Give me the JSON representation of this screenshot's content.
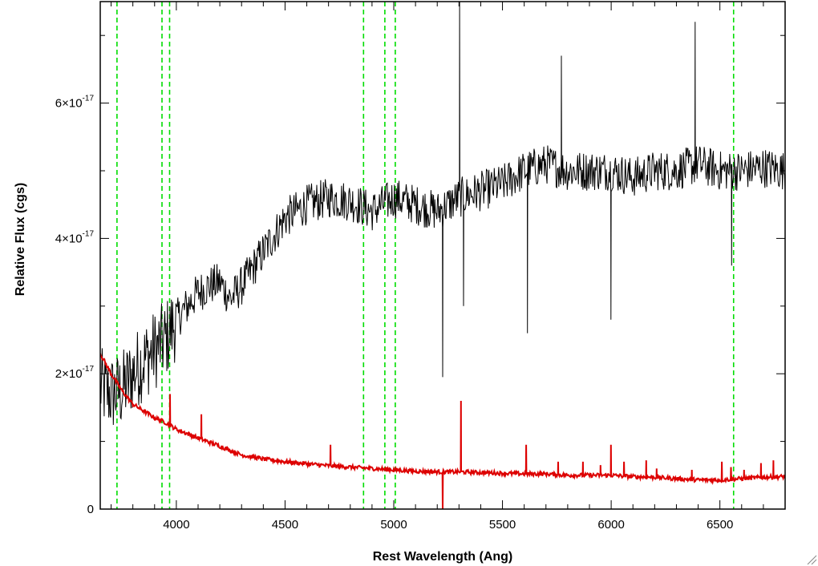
{
  "chart_data": {
    "type": "line",
    "title": "",
    "xlabel": "Rest Wavelength (Ang)",
    "ylabel": "Relative Flux (cgs)",
    "xlim": [
      3650,
      6800
    ],
    "ylim": [
      0,
      7.5e-17
    ],
    "x_ticks": [
      {
        "value": 4000,
        "label": "4000"
      },
      {
        "value": 4500,
        "label": "4500"
      },
      {
        "value": 5000,
        "label": "5000"
      },
      {
        "value": 5500,
        "label": "5500"
      },
      {
        "value": 6000,
        "label": "6000"
      },
      {
        "value": 6500,
        "label": "6500"
      }
    ],
    "y_ticks": [
      {
        "value": 0,
        "mantissa": "0",
        "exponent": ""
      },
      {
        "value": 2e-17,
        "mantissa": "2×10",
        "exponent": "-17"
      },
      {
        "value": 4e-17,
        "mantissa": "4×10",
        "exponent": "-17"
      },
      {
        "value": 6e-17,
        "mantissa": "6×10",
        "exponent": "-17"
      }
    ],
    "grid": false,
    "legend": "none",
    "vertical_lines": {
      "color": "#00dd00",
      "style": "dashed",
      "x": [
        3727,
        3934,
        3969,
        4861,
        4959,
        5007,
        6563
      ]
    },
    "series": [
      {
        "color": "#000000",
        "width": 1,
        "noise_amplitude": 3e-18,
        "x": [
          3650,
          3700,
          3750,
          3800,
          3850,
          3900,
          3950,
          4000,
          4050,
          4100,
          4150,
          4200,
          4250,
          4300,
          4400,
          4500,
          4600,
          4700,
          4800,
          4900,
          5000,
          5100,
          5200,
          5300,
          5400,
          5500,
          5600,
          5700,
          5800,
          5900,
          6000,
          6100,
          6200,
          6300,
          6400,
          6500,
          6600,
          6700,
          6800
        ],
        "y": [
          1.8e-17,
          1.7e-17,
          1.75e-17,
          2e-17,
          2.2e-17,
          2.35e-17,
          2.5e-17,
          2.8e-17,
          3e-17,
          3.2e-17,
          3.3e-17,
          3.35e-17,
          3.1e-17,
          3.3e-17,
          3.8e-17,
          4.3e-17,
          4.5e-17,
          4.6e-17,
          4.55e-17,
          4.4e-17,
          4.6e-17,
          4.5e-17,
          4.4e-17,
          4.6e-17,
          4.7e-17,
          4.8e-17,
          5e-17,
          5.1e-17,
          5e-17,
          5e-17,
          5e-17,
          4.9e-17,
          5e-17,
          5e-17,
          5.1e-17,
          5e-17,
          5e-17,
          5.05e-17,
          5e-17
        ],
        "features": [
          {
            "x": 5224,
            "y": 1.95e-17
          },
          {
            "x": 5302,
            "y": 7.5e-17
          },
          {
            "x": 5322,
            "y": 3e-17
          },
          {
            "x": 5615,
            "y": 2.6e-17
          },
          {
            "x": 5770,
            "y": 6.7e-17
          },
          {
            "x": 6000,
            "y": 2.8e-17
          },
          {
            "x": 6385,
            "y": 7.2e-17
          },
          {
            "x": 6555,
            "y": 3.6e-17
          }
        ]
      },
      {
        "color": "#dd0000",
        "width": 2,
        "noise_amplitude": 3e-19,
        "x": [
          3650,
          3700,
          3750,
          3800,
          3850,
          3900,
          3950,
          4000,
          4100,
          4200,
          4300,
          4400,
          4500,
          4600,
          4700,
          4800,
          4900,
          5000,
          5100,
          5200,
          5300,
          5400,
          5500,
          5600,
          5700,
          5800,
          5900,
          6000,
          6100,
          6200,
          6300,
          6400,
          6500,
          6600,
          6700,
          6800
        ],
        "y": [
          2.3e-17,
          2e-17,
          1.75e-17,
          1.55e-17,
          1.45e-17,
          1.35e-17,
          1.28e-17,
          1.18e-17,
          1.05e-17,
          9.3e-18,
          8e-18,
          7.4e-18,
          7e-18,
          6.7e-18,
          6.4e-18,
          6.2e-18,
          6e-18,
          5.8e-18,
          5.6e-18,
          5.5e-18,
          5.5e-18,
          5.4e-18,
          5.3e-18,
          5.2e-18,
          5.2e-18,
          5e-18,
          5e-18,
          5e-18,
          4.8e-18,
          4.7e-18,
          4.5e-18,
          4.3e-18,
          4.3e-18,
          4.5e-18,
          4.7e-18,
          4.8e-18
        ],
        "features": [
          {
            "x": 3970,
            "y": 1.7e-17
          },
          {
            "x": 4115,
            "y": 1.4e-17
          },
          {
            "x": 4710,
            "y": 9.5e-18
          },
          {
            "x": 5224,
            "y": 0.0
          },
          {
            "x": 5310,
            "y": 1.6e-17
          },
          {
            "x": 5610,
            "y": 9.5e-18
          },
          {
            "x": 5755,
            "y": 7e-18
          },
          {
            "x": 5870,
            "y": 7e-18
          },
          {
            "x": 5950,
            "y": 6.5e-18
          },
          {
            "x": 6000,
            "y": 9.5e-18
          },
          {
            "x": 6060,
            "y": 7e-18
          },
          {
            "x": 6160,
            "y": 7.2e-18
          },
          {
            "x": 6210,
            "y": 6e-18
          },
          {
            "x": 6370,
            "y": 5.8e-18
          },
          {
            "x": 6510,
            "y": 7e-18
          },
          {
            "x": 6550,
            "y": 6.2e-18
          },
          {
            "x": 6610,
            "y": 5.8e-18
          },
          {
            "x": 6690,
            "y": 6.8e-18
          },
          {
            "x": 6745,
            "y": 7.2e-18
          }
        ]
      }
    ]
  }
}
